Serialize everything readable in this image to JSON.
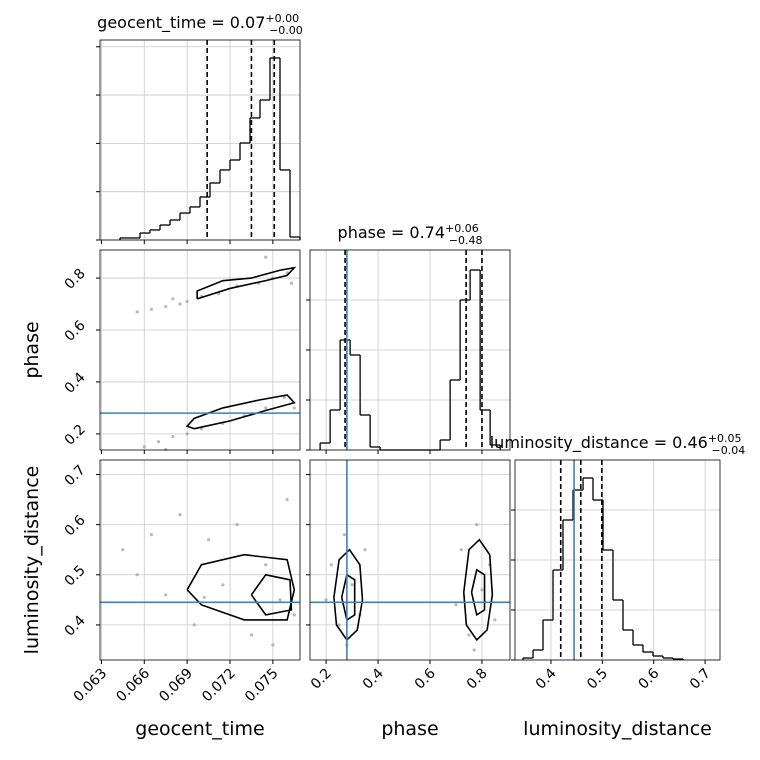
{
  "chart_data": [
    {
      "type": "histogram",
      "title": "geocent_time = 0.07",
      "title_sup": "+0.00",
      "title_sub": "−0.00",
      "bins": [
        0.0643,
        0.065,
        0.0657,
        0.0664,
        0.0671,
        0.0678,
        0.0685,
        0.0692,
        0.0699,
        0.0706,
        0.0713,
        0.072,
        0.0727,
        0.0734,
        0.0741,
        0.0748,
        0.0755,
        0.0762,
        0.0769
      ],
      "counts": [
        21,
        21,
        72,
        104,
        155,
        207,
        279,
        342,
        445,
        590,
        725,
        828,
        1004,
        1263,
        1449,
        1884,
        725,
        31
      ],
      "xlim": [
        0.0629,
        0.0769
      ],
      "ylim": [
        0,
        2070
      ],
      "xticks": [
        0.063,
        0.066,
        0.069,
        0.072,
        0.075
      ],
      "yticks": [
        0,
        500,
        1000,
        1500,
        2000
      ],
      "quantiles": [
        0.0704,
        0.0735,
        0.0751
      ],
      "grid": true,
      "color": "#000000"
    },
    {
      "type": "scatter",
      "ylabel": "phase",
      "x": [
        0.0655,
        0.0665,
        0.0675,
        0.0685,
        0.069,
        0.07,
        0.0712,
        0.0725,
        0.074,
        0.075,
        0.076,
        0.0745,
        0.0763,
        0.068,
        0.066,
        0.067,
        0.068,
        0.069,
        0.07,
        0.0715,
        0.073,
        0.0745,
        0.0758,
        0.0765,
        0.0675
      ],
      "y": [
        0.67,
        0.68,
        0.69,
        0.7,
        0.71,
        0.73,
        0.74,
        0.77,
        0.78,
        0.8,
        0.82,
        0.88,
        0.78,
        0.72,
        0.15,
        0.17,
        0.19,
        0.2,
        0.22,
        0.24,
        0.27,
        0.3,
        0.34,
        0.3,
        0.14
      ],
      "contours": [
        {
          "x": [
            0.0697,
            0.072,
            0.0745,
            0.076,
            0.0765,
            0.0755,
            0.0735,
            0.0715,
            0.0697,
            0.0697
          ],
          "y": [
            0.72,
            0.76,
            0.79,
            0.81,
            0.84,
            0.83,
            0.8,
            0.79,
            0.75,
            0.72
          ]
        },
        {
          "x": [
            0.0695,
            0.072,
            0.0745,
            0.0765,
            0.076,
            0.074,
            0.0715,
            0.0695,
            0.069,
            0.0695
          ],
          "y": [
            0.22,
            0.25,
            0.29,
            0.32,
            0.35,
            0.33,
            0.3,
            0.26,
            0.23,
            0.22
          ]
        }
      ],
      "truth_y": 0.28,
      "xlim": [
        0.0629,
        0.0769
      ],
      "ylim": [
        0.138,
        0.908
      ],
      "xticks": [
        0.063,
        0.066,
        0.069,
        0.072,
        0.075
      ],
      "yticks": [
        0.2,
        0.4,
        0.6,
        0.8
      ],
      "grid": true,
      "color": "#000000",
      "point_color": "#9a9a9a",
      "truth_color": "#3f80b8"
    },
    {
      "type": "histogram",
      "title": "phase = 0.74",
      "title_sup": "+0.06",
      "title_sub": "−0.48",
      "bins": [
        0.177,
        0.2155,
        0.254,
        0.2925,
        0.331,
        0.3695,
        0.408,
        0.4465,
        0.485,
        0.5235,
        0.562,
        0.6005,
        0.639,
        0.6775,
        0.716,
        0.7545,
        0.793,
        0.8315,
        0.87
      ],
      "counts": [
        7,
        40,
        110,
        95,
        35,
        3,
        0,
        0,
        0,
        0,
        0,
        0,
        10,
        70,
        150,
        180,
        40,
        5
      ],
      "xlim": [
        0.138,
        0.908
      ],
      "ylim": [
        0,
        200
      ],
      "xticks": [
        0.2,
        0.4,
        0.6,
        0.8
      ],
      "yticks": [
        0,
        50,
        100,
        150
      ],
      "quantiles": [
        0.273,
        0.739,
        0.8
      ],
      "truth": 0.28,
      "grid": true,
      "color": "#000000",
      "truth_color": "#3f80b8"
    },
    {
      "type": "scatter",
      "xlabel": "geocent_time",
      "ylabel": "luminosity_distance",
      "x": [
        0.0645,
        0.0655,
        0.0665,
        0.0675,
        0.0685,
        0.0695,
        0.0705,
        0.0715,
        0.0725,
        0.0735,
        0.0745,
        0.0755,
        0.076,
        0.0765,
        0.075,
        0.0702
      ],
      "y": [
        0.55,
        0.5,
        0.58,
        0.46,
        0.62,
        0.4,
        0.57,
        0.48,
        0.6,
        0.38,
        0.52,
        0.45,
        0.65,
        0.42,
        0.36,
        0.455
      ],
      "contours": [
        {
          "x": [
            0.069,
            0.07,
            0.073,
            0.076,
            0.0765,
            0.076,
            0.073,
            0.07,
            0.069
          ],
          "y": [
            0.47,
            0.52,
            0.54,
            0.53,
            0.47,
            0.41,
            0.41,
            0.44,
            0.47
          ]
        },
        {
          "x": [
            0.0735,
            0.0745,
            0.0762,
            0.0763,
            0.0745,
            0.0735
          ],
          "y": [
            0.46,
            0.5,
            0.49,
            0.43,
            0.42,
            0.46
          ]
        }
      ],
      "truth_y": 0.445,
      "xlim": [
        0.0629,
        0.0769
      ],
      "ylim": [
        0.33,
        0.729
      ],
      "xticks": [
        0.063,
        0.066,
        0.069,
        0.072,
        0.075
      ],
      "yticks": [
        0.4,
        0.5,
        0.6,
        0.7
      ],
      "grid": true,
      "color": "#000000",
      "point_color": "#9a9a9a",
      "truth_color": "#3f80b8"
    },
    {
      "type": "scatter",
      "xlabel": "phase",
      "x": [
        0.2,
        0.22,
        0.25,
        0.27,
        0.3,
        0.33,
        0.35,
        0.28,
        0.7,
        0.72,
        0.75,
        0.78,
        0.8,
        0.83,
        0.85,
        0.77
      ],
      "y": [
        0.45,
        0.52,
        0.4,
        0.58,
        0.48,
        0.42,
        0.55,
        0.36,
        0.44,
        0.55,
        0.38,
        0.6,
        0.47,
        0.52,
        0.41,
        0.35
      ],
      "contours": [
        {
          "x": [
            0.23,
            0.25,
            0.29,
            0.33,
            0.34,
            0.32,
            0.28,
            0.24,
            0.23
          ],
          "y": [
            0.455,
            0.53,
            0.55,
            0.52,
            0.45,
            0.39,
            0.37,
            0.4,
            0.455
          ]
        },
        {
          "x": [
            0.73,
            0.75,
            0.79,
            0.83,
            0.84,
            0.82,
            0.78,
            0.74,
            0.73
          ],
          "y": [
            0.465,
            0.55,
            0.57,
            0.54,
            0.46,
            0.39,
            0.37,
            0.4,
            0.465
          ]
        },
        {
          "x": [
            0.26,
            0.28,
            0.31,
            0.31,
            0.28,
            0.26
          ],
          "y": [
            0.455,
            0.5,
            0.49,
            0.42,
            0.41,
            0.455
          ]
        },
        {
          "x": [
            0.76,
            0.78,
            0.81,
            0.81,
            0.78,
            0.76
          ],
          "y": [
            0.465,
            0.51,
            0.5,
            0.43,
            0.42,
            0.465
          ]
        }
      ],
      "truth_x": 0.28,
      "truth_y": 0.445,
      "xlim": [
        0.138,
        0.908
      ],
      "ylim": [
        0.33,
        0.729
      ],
      "xticks": [
        0.2,
        0.4,
        0.6,
        0.8
      ],
      "yticks": [
        0.4,
        0.5,
        0.6,
        0.7
      ],
      "grid": true,
      "color": "#000000",
      "point_color": "#9a9a9a",
      "truth_color": "#3f80b8"
    },
    {
      "type": "histogram",
      "title": "luminosity_distance = 0.46",
      "title_sup": "+0.05",
      "title_sub": "−0.04",
      "xlabel": "luminosity_distance",
      "bins": [
        0.3456,
        0.3651,
        0.3845,
        0.404,
        0.4234,
        0.4429,
        0.4624,
        0.4818,
        0.5013,
        0.5207,
        0.5402,
        0.5597,
        0.5791,
        0.5986,
        0.618,
        0.6375,
        0.657
      ],
      "counts": [
        2,
        10,
        40,
        90,
        140,
        170,
        182,
        160,
        110,
        60,
        30,
        15,
        8,
        4,
        2,
        1
      ],
      "xlim": [
        0.33,
        0.729
      ],
      "ylim": [
        0,
        200
      ],
      "xticks": [
        0.4,
        0.5,
        0.6,
        0.7
      ],
      "yticks": [
        0,
        50,
        100,
        150
      ],
      "quantiles": [
        0.419,
        0.458,
        0.499
      ],
      "truth": 0.445,
      "grid": true,
      "color": "#000000",
      "truth_color": "#3f80b8"
    }
  ]
}
